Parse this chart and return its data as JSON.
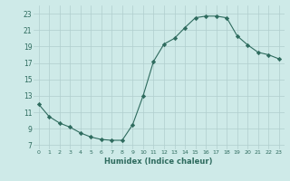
{
  "x": [
    0,
    1,
    2,
    3,
    4,
    5,
    6,
    7,
    8,
    9,
    10,
    11,
    12,
    13,
    14,
    15,
    16,
    17,
    18,
    19,
    20,
    21,
    22,
    23
  ],
  "y": [
    12.0,
    10.5,
    9.7,
    9.2,
    8.5,
    8.0,
    7.7,
    7.6,
    7.6,
    9.5,
    13.0,
    17.2,
    19.3,
    20.0,
    21.3,
    22.5,
    22.7,
    22.7,
    22.5,
    20.3,
    19.2,
    18.3,
    18.0,
    17.5
  ],
  "line_color": "#2e6b5e",
  "marker": "D",
  "marker_size": 2.2,
  "bg_color": "#ceeae8",
  "grid_color": "#b0cece",
  "tick_color": "#2e6b5e",
  "label_color": "#2e6b5e",
  "xlabel": "Humidex (Indice chaleur)",
  "yticks": [
    7,
    9,
    11,
    13,
    15,
    17,
    19,
    21,
    23
  ],
  "xticks": [
    0,
    1,
    2,
    3,
    4,
    5,
    6,
    7,
    8,
    9,
    10,
    11,
    12,
    13,
    14,
    15,
    16,
    17,
    18,
    19,
    20,
    21,
    22,
    23
  ],
  "ylim": [
    6.5,
    24.0
  ],
  "xlim": [
    -0.5,
    23.5
  ]
}
